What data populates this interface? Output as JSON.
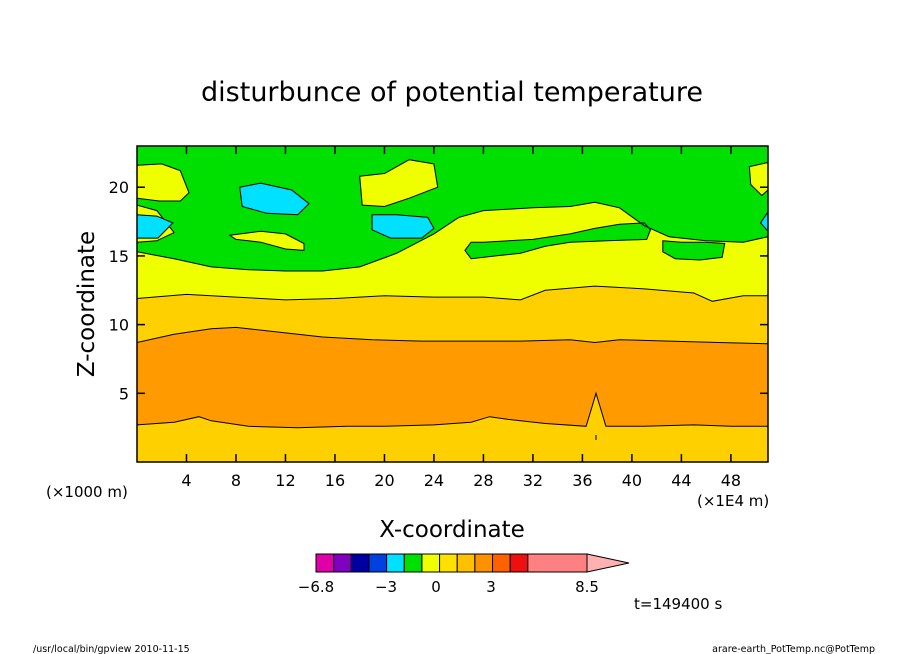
{
  "chart_data": {
    "type": "contour",
    "title": "disturbunce of potential temperature",
    "xlabel": "X-coordinate",
    "ylabel": "Z-coordinate",
    "x_unit": "(×1E4 m)",
    "y_unit": "(×1000 m)",
    "xlim": [
      0,
      51
    ],
    "ylim": [
      0,
      23
    ],
    "x_ticks": [
      4,
      8,
      12,
      16,
      20,
      24,
      28,
      32,
      36,
      40,
      44,
      48
    ],
    "y_ticks": [
      5,
      10,
      15,
      20
    ],
    "time_label": "t=149400 s",
    "colorbar": {
      "colors": [
        "#e000a8",
        "#8000c0",
        "#0000a0",
        "#0040e0",
        "#00e0ff",
        "#00e000",
        "#f0ff00",
        "#ffe000",
        "#ffc000",
        "#ff9000",
        "#ff6000",
        "#ee1010",
        "#ff8080",
        "#ffb0b0"
      ],
      "tick_labels": [
        {
          "value": -6.8,
          "label": "−6.8"
        },
        {
          "value": -3,
          "label": "−3"
        },
        {
          "value": 0,
          "label": "0"
        },
        {
          "value": 3,
          "label": "3"
        },
        {
          "value": 8.5,
          "label": "8.5"
        }
      ]
    },
    "fields": {
      "green": "#00e000",
      "cyan": "#00e0ff",
      "yellow": "#f0ff00",
      "gold": "#ffd000",
      "orange": "#ff9a00"
    },
    "boundaries": {
      "green_bottom": [
        [
          0,
          15.3
        ],
        [
          3,
          14.8
        ],
        [
          6,
          14.2
        ],
        [
          9,
          14.0
        ],
        [
          12,
          13.9
        ],
        [
          15,
          13.9
        ],
        [
          18,
          14.2
        ],
        [
          21,
          15.2
        ],
        [
          24,
          16.6
        ],
        [
          26,
          17.8
        ],
        [
          28,
          18.3
        ],
        [
          32,
          18.5
        ],
        [
          35,
          18.6
        ],
        [
          37,
          18.9
        ],
        [
          39,
          18.5
        ],
        [
          41,
          17.2
        ],
        [
          43,
          16.4
        ],
        [
          46,
          16.1
        ],
        [
          49,
          16.0
        ],
        [
          51,
          16.4
        ]
      ],
      "gold_top": [
        [
          0,
          11.9
        ],
        [
          4,
          12.2
        ],
        [
          8,
          12.0
        ],
        [
          12,
          11.8
        ],
        [
          16,
          11.9
        ],
        [
          20,
          12.1
        ],
        [
          24,
          12.0
        ],
        [
          28,
          12.0
        ],
        [
          31,
          11.8
        ],
        [
          33,
          12.5
        ],
        [
          37,
          12.8
        ],
        [
          41,
          12.6
        ],
        [
          45,
          12.3
        ],
        [
          46.5,
          11.7
        ],
        [
          49,
          12.1
        ],
        [
          51,
          12.1
        ]
      ],
      "orange_top": [
        [
          0,
          8.7
        ],
        [
          3,
          9.3
        ],
        [
          6,
          9.7
        ],
        [
          8,
          9.8
        ],
        [
          11,
          9.5
        ],
        [
          15,
          9.1
        ],
        [
          19,
          8.9
        ],
        [
          23,
          8.8
        ],
        [
          27,
          8.8
        ],
        [
          31,
          8.8
        ],
        [
          35,
          8.9
        ],
        [
          37,
          8.7
        ],
        [
          39,
          8.9
        ],
        [
          43,
          8.8
        ],
        [
          47,
          8.7
        ],
        [
          51,
          8.6
        ]
      ],
      "orange_bottom": [
        [
          0,
          2.7
        ],
        [
          3,
          2.9
        ],
        [
          5,
          3.3
        ],
        [
          6,
          3.0
        ],
        [
          9,
          2.6
        ],
        [
          13,
          2.5
        ],
        [
          17,
          2.6
        ],
        [
          20,
          2.6
        ],
        [
          24,
          2.7
        ],
        [
          27,
          2.9
        ],
        [
          28.5,
          3.3
        ],
        [
          30,
          3.1
        ],
        [
          33,
          2.8
        ],
        [
          36.3,
          2.6
        ],
        [
          36.7,
          3.8
        ],
        [
          37.1,
          5.0
        ],
        [
          37.5,
          3.8
        ],
        [
          37.9,
          2.6
        ],
        [
          41,
          2.6
        ],
        [
          45,
          2.7
        ],
        [
          48,
          2.6
        ],
        [
          51,
          2.6
        ]
      ]
    },
    "regions": [
      {
        "fill": "green",
        "points": [
          [
            28,
            16.0
          ],
          [
            32,
            16.2
          ],
          [
            35,
            16.6
          ],
          [
            37,
            17.0
          ],
          [
            39,
            17.3
          ],
          [
            41,
            17.4
          ],
          [
            41.5,
            16.9
          ],
          [
            41.2,
            16.2
          ],
          [
            38,
            16.1
          ],
          [
            35,
            16.0
          ],
          [
            33,
            15.7
          ],
          [
            31,
            15.2
          ],
          [
            29,
            15.0
          ],
          [
            27,
            14.8
          ],
          [
            26.5,
            15.4
          ],
          [
            27,
            16.0
          ]
        ]
      },
      {
        "fill": "green",
        "points": [
          [
            42.5,
            16.1
          ],
          [
            44,
            16.0
          ],
          [
            46,
            16.0
          ],
          [
            47.5,
            15.9
          ],
          [
            47.3,
            14.9
          ],
          [
            45.5,
            14.7
          ],
          [
            43.5,
            14.8
          ],
          [
            42.5,
            15.3
          ]
        ]
      },
      {
        "fill": "yellow",
        "points": [
          [
            0,
            21.6
          ],
          [
            2,
            21.7
          ],
          [
            3.5,
            21.2
          ],
          [
            4.2,
            19.6
          ],
          [
            3.5,
            19.0
          ],
          [
            1.8,
            19.0
          ],
          [
            0,
            19.2
          ]
        ]
      },
      {
        "fill": "yellow",
        "points": [
          [
            0,
            18.7
          ],
          [
            1.6,
            18.3
          ],
          [
            3.0,
            16.7
          ],
          [
            1.6,
            16.1
          ],
          [
            0,
            16.0
          ]
        ]
      },
      {
        "fill": "yellow",
        "points": [
          [
            7.5,
            16.5
          ],
          [
            10,
            16.8
          ],
          [
            12,
            16.6
          ],
          [
            13.5,
            15.9
          ],
          [
            13.5,
            15.4
          ],
          [
            12,
            15.5
          ],
          [
            10,
            16.0
          ],
          [
            8,
            16.2
          ]
        ]
      },
      {
        "fill": "yellow",
        "points": [
          [
            18,
            20.8
          ],
          [
            20,
            21.0
          ],
          [
            22,
            22.0
          ],
          [
            24,
            21.7
          ],
          [
            24.3,
            20.0
          ],
          [
            22,
            19.2
          ],
          [
            20,
            18.6
          ],
          [
            18.2,
            18.7
          ]
        ]
      },
      {
        "fill": "yellow",
        "points": [
          [
            50.5,
            19.4
          ],
          [
            51,
            19.8
          ],
          [
            51,
            21.8
          ],
          [
            49.5,
            21.5
          ],
          [
            49.6,
            20.2
          ]
        ]
      },
      {
        "fill": "cyan",
        "points": [
          [
            0,
            18.0
          ],
          [
            1.6,
            17.9
          ],
          [
            2.9,
            17.4
          ],
          [
            1.7,
            16.3
          ],
          [
            0,
            16.3
          ]
        ]
      },
      {
        "fill": "cyan",
        "points": [
          [
            8.3,
            20.0
          ],
          [
            10,
            20.3
          ],
          [
            12.5,
            19.8
          ],
          [
            13.9,
            18.8
          ],
          [
            13,
            18.0
          ],
          [
            10.5,
            18.1
          ],
          [
            8.5,
            18.6
          ]
        ]
      },
      {
        "fill": "cyan",
        "points": [
          [
            19,
            18.0
          ],
          [
            21,
            18.0
          ],
          [
            23.5,
            17.8
          ],
          [
            24.0,
            17.0
          ],
          [
            23,
            16.3
          ],
          [
            20.5,
            16.3
          ],
          [
            19.0,
            16.9
          ]
        ]
      },
      {
        "fill": "cyan",
        "points": [
          [
            51,
            18.2
          ],
          [
            50.4,
            17.4
          ],
          [
            51,
            16.8
          ]
        ]
      }
    ]
  },
  "footer": {
    "left": "/usr/local/bin/gpview   2010-11-15",
    "right": "arare-earth_PotTemp.nc@PotTemp"
  }
}
